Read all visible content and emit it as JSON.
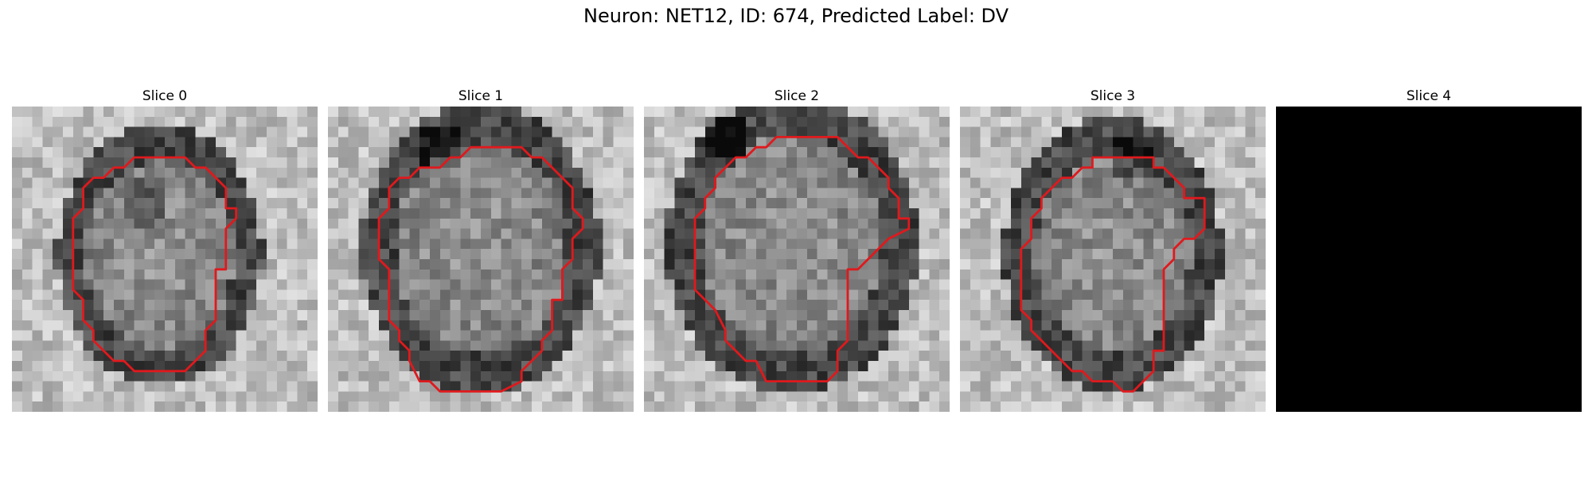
{
  "figure": {
    "title": "Neuron: NET12, ID: 674, Predicted Label: DV"
  },
  "colors": {
    "contour": "#e0191d",
    "empty_slice": "#000000"
  },
  "slices": [
    {
      "title": "Slice 0",
      "has_image": true,
      "has_contour": true,
      "seed": 11
    },
    {
      "title": "Slice 1",
      "has_image": true,
      "has_contour": true,
      "seed": 23
    },
    {
      "title": "Slice 2",
      "has_image": true,
      "has_contour": true,
      "seed": 37
    },
    {
      "title": "Slice 3",
      "has_image": true,
      "has_contour": true,
      "seed": 53
    },
    {
      "title": "Slice 4",
      "has_image": false,
      "has_contour": false,
      "seed": 0
    }
  ]
}
